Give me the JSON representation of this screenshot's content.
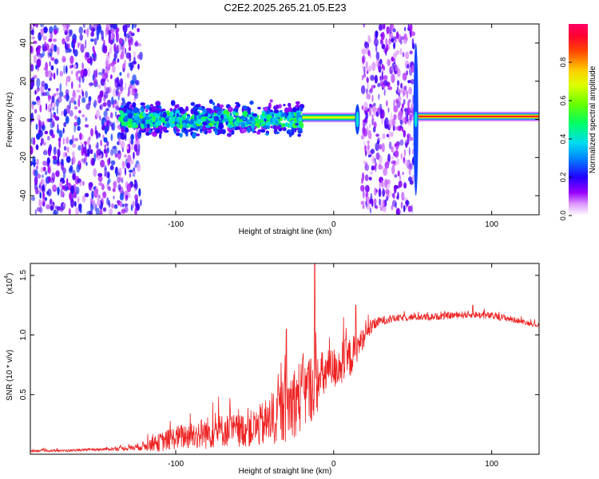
{
  "title": "C2E2.2025.265.21.05.E23",
  "chart_data": [
    {
      "type": "heatmap",
      "panel": "spectrogram",
      "xlabel": "Height of straight line (km)",
      "ylabel": "Frequency (Hz)",
      "xlim": [
        -192,
        130
      ],
      "ylim": [
        -50,
        50
      ],
      "xticks": [
        -100,
        0,
        100
      ],
      "yticks": [
        -40,
        -20,
        0,
        20,
        40
      ],
      "colorbar": {
        "label": "Normalized spectral amplitude",
        "range": [
          0,
          1
        ],
        "ticks": [
          0.0,
          0.2,
          0.4,
          0.6,
          0.8
        ],
        "colors": [
          "#ffffff",
          "#cc88ff",
          "#8800ff",
          "#0000ff",
          "#00ccff",
          "#00ff66",
          "#88ff00",
          "#ffff00",
          "#ff8800",
          "#ff0000",
          "#ff0066"
        ]
      },
      "regions": [
        {
          "name": "noise-left",
          "x": [
            -192,
            -122
          ],
          "freq": [
            -50,
            50
          ],
          "amp": 0.25
        },
        {
          "name": "scattered-band",
          "x": [
            -135,
            -20
          ],
          "freq": [
            -12,
            10
          ],
          "amp": 0.4
        },
        {
          "name": "carrier-weak",
          "x": [
            -20,
            15
          ],
          "freq": [
            -1,
            3
          ],
          "amp": 0.7
        },
        {
          "name": "noise-gap",
          "x": [
            18,
            51
          ],
          "freq": [
            -50,
            50
          ],
          "amp": 0.2
        },
        {
          "name": "carrier-strong",
          "x": [
            52,
            130
          ],
          "freq": [
            0,
            3
          ],
          "amp": 0.9
        }
      ]
    },
    {
      "type": "line",
      "panel": "snr",
      "xlabel": "Height of straight line (km)",
      "ylabel": "SNR (10 * v/v)",
      "yscale_label": "(x10",
      "yscale_exp": "4",
      "xlim": [
        -192,
        130
      ],
      "ylim": [
        0,
        1.6
      ],
      "xticks": [
        -100,
        0,
        100
      ],
      "yticks": [
        0.5,
        1.0,
        1.5
      ],
      "series": [
        {
          "name": "SNR",
          "color": "#ee2222",
          "x": [
            -192,
            -170,
            -150,
            -130,
            -120,
            -110,
            -100,
            -90,
            -80,
            -70,
            -60,
            -50,
            -40,
            -30,
            -20,
            -15,
            -10,
            -5,
            0,
            5,
            10,
            15,
            20,
            25,
            30,
            40,
            50,
            60,
            70,
            80,
            90,
            100,
            110,
            120,
            130
          ],
          "mean": [
            0.03,
            0.03,
            0.04,
            0.05,
            0.07,
            0.1,
            0.14,
            0.16,
            0.18,
            0.2,
            0.2,
            0.22,
            0.28,
            0.4,
            0.5,
            0.55,
            0.6,
            0.68,
            0.72,
            0.76,
            0.8,
            0.9,
            1.0,
            1.08,
            1.12,
            1.14,
            1.15,
            1.15,
            1.16,
            1.17,
            1.17,
            1.16,
            1.14,
            1.11,
            1.08
          ],
          "spread": [
            0.01,
            0.01,
            0.01,
            0.02,
            0.04,
            0.08,
            0.1,
            0.12,
            0.14,
            0.14,
            0.14,
            0.16,
            0.22,
            0.3,
            0.32,
            0.3,
            0.25,
            0.2,
            0.18,
            0.2,
            0.18,
            0.12,
            0.08,
            0.05,
            0.04,
            0.03,
            0.03,
            0.03,
            0.03,
            0.03,
            0.03,
            0.03,
            0.03,
            0.02,
            0.02
          ],
          "peaks": [
            {
              "x": -12,
              "y": 1.6
            },
            {
              "x": 14,
              "y": 1.25
            },
            {
              "x": -30,
              "y": 1.05
            },
            {
              "x": 88,
              "y": 1.25
            }
          ]
        }
      ]
    }
  ]
}
